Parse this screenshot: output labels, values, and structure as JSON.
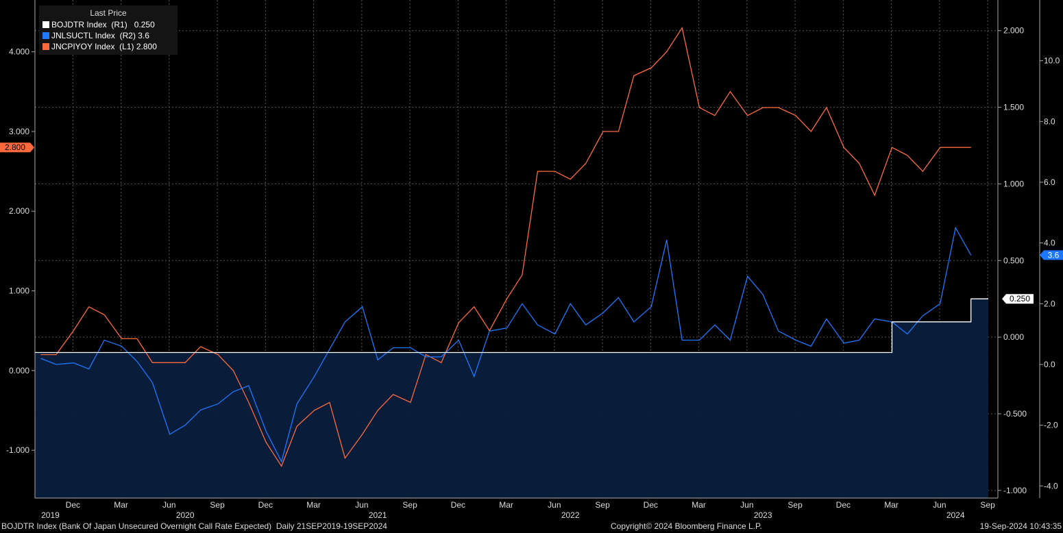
{
  "legend": {
    "title": "Last Price",
    "items": [
      {
        "ticker": "BOJDTR Index",
        "axis": "(R1)",
        "value": "0.250",
        "color": "#ffffff"
      },
      {
        "ticker": "JNLSUCTL Index",
        "axis": "(R2)",
        "value": "3.6",
        "color": "#1e78ff"
      },
      {
        "ticker": "JNCPIYOY Index",
        "axis": "(L1)",
        "value": "2.800",
        "color": "#ff6a3d"
      }
    ]
  },
  "footer": {
    "left": "BOJDTR Index (Bank Of Japan Unsecured Overnight Call Rate Expected)  Daily 21SEP2019-19SEP2024",
    "center": "Copyright© 2024 Bloomberg Finance L.P.",
    "right": "19-Sep-2024 10:43:35"
  },
  "chart_data": {
    "type": "line",
    "x_axis": {
      "month_ticks": [
        {
          "label": "Dec",
          "t": 2019.917
        },
        {
          "label": "Mar",
          "t": 2020.167
        },
        {
          "label": "Jun",
          "t": 2020.417
        },
        {
          "label": "Sep",
          "t": 2020.667
        },
        {
          "label": "Dec",
          "t": 2020.917
        },
        {
          "label": "Mar",
          "t": 2021.167
        },
        {
          "label": "Jun",
          "t": 2021.417
        },
        {
          "label": "Sep",
          "t": 2021.667
        },
        {
          "label": "Dec",
          "t": 2021.917
        },
        {
          "label": "Mar",
          "t": 2022.167
        },
        {
          "label": "Jun",
          "t": 2022.417
        },
        {
          "label": "Sep",
          "t": 2022.667
        },
        {
          "label": "Dec",
          "t": 2022.917
        },
        {
          "label": "Mar",
          "t": 2023.167
        },
        {
          "label": "Jun",
          "t": 2023.417
        },
        {
          "label": "Sep",
          "t": 2023.667
        },
        {
          "label": "Dec",
          "t": 2023.917
        },
        {
          "label": "Mar",
          "t": 2024.167
        },
        {
          "label": "Jun",
          "t": 2024.417
        },
        {
          "label": "Sep",
          "t": 2024.667
        }
      ],
      "year_labels": [
        {
          "label": "2019",
          "t": 2019.8
        },
        {
          "label": "2020",
          "t": 2020.5
        },
        {
          "label": "2021",
          "t": 2021.5
        },
        {
          "label": "2022",
          "t": 2022.5
        },
        {
          "label": "2023",
          "t": 2023.5
        },
        {
          "label": "2024",
          "t": 2024.5
        }
      ],
      "range": [
        2019.72,
        2024.72
      ]
    },
    "left_axis": {
      "series": "L1",
      "range": [
        -1.6,
        4.65
      ],
      "ticks": [
        -1,
        0,
        1,
        2,
        3,
        4
      ],
      "format": 3
    },
    "right_axis_1": {
      "series": "R1",
      "range": [
        -1.05,
        2.2
      ],
      "ticks": [
        -1,
        -0.5,
        0,
        0.5,
        1,
        1.5,
        2
      ],
      "format": 3
    },
    "right_axis_2": {
      "series": "R2",
      "range": [
        -4.4,
        12
      ],
      "ticks": [
        -4,
        -2,
        0,
        2,
        4,
        6,
        8,
        10
      ],
      "format": 1
    },
    "series": [
      {
        "name": "JNCPIYOY Index",
        "axis": "L1",
        "color": "#ff6a3d",
        "points": [
          [
            2019.75,
            0.2
          ],
          [
            2019.83,
            0.2
          ],
          [
            2019.92,
            0.5
          ],
          [
            2020.0,
            0.8
          ],
          [
            2020.08,
            0.7
          ],
          [
            2020.17,
            0.4
          ],
          [
            2020.25,
            0.4
          ],
          [
            2020.33,
            0.1
          ],
          [
            2020.42,
            0.1
          ],
          [
            2020.5,
            0.1
          ],
          [
            2020.58,
            0.3
          ],
          [
            2020.67,
            0.2
          ],
          [
            2020.75,
            0.0
          ],
          [
            2020.83,
            -0.4
          ],
          [
            2020.92,
            -0.9
          ],
          [
            2021.0,
            -1.2
          ],
          [
            2021.08,
            -0.7
          ],
          [
            2021.17,
            -0.5
          ],
          [
            2021.25,
            -0.4
          ],
          [
            2021.33,
            -1.1
          ],
          [
            2021.42,
            -0.8
          ],
          [
            2021.5,
            -0.5
          ],
          [
            2021.58,
            -0.3
          ],
          [
            2021.67,
            -0.4
          ],
          [
            2021.75,
            0.2
          ],
          [
            2021.83,
            0.1
          ],
          [
            2021.92,
            0.6
          ],
          [
            2022.0,
            0.8
          ],
          [
            2022.08,
            0.5
          ],
          [
            2022.17,
            0.9
          ],
          [
            2022.25,
            1.2
          ],
          [
            2022.33,
            2.5
          ],
          [
            2022.42,
            2.5
          ],
          [
            2022.5,
            2.4
          ],
          [
            2022.58,
            2.6
          ],
          [
            2022.67,
            3.0
          ],
          [
            2022.75,
            3.0
          ],
          [
            2022.83,
            3.7
          ],
          [
            2022.92,
            3.8
          ],
          [
            2023.0,
            4.0
          ],
          [
            2023.08,
            4.3
          ],
          [
            2023.17,
            3.3
          ],
          [
            2023.25,
            3.2
          ],
          [
            2023.33,
            3.5
          ],
          [
            2023.42,
            3.2
          ],
          [
            2023.5,
            3.3
          ],
          [
            2023.58,
            3.3
          ],
          [
            2023.67,
            3.2
          ],
          [
            2023.75,
            3.0
          ],
          [
            2023.83,
            3.3
          ],
          [
            2023.92,
            2.8
          ],
          [
            2024.0,
            2.6
          ],
          [
            2024.08,
            2.2
          ],
          [
            2024.17,
            2.8
          ],
          [
            2024.25,
            2.7
          ],
          [
            2024.33,
            2.5
          ],
          [
            2024.42,
            2.8
          ],
          [
            2024.5,
            2.8
          ],
          [
            2024.58,
            2.8
          ]
        ]
      },
      {
        "name": "JNLSUCTL Index",
        "axis": "R2",
        "color": "#1e78ff",
        "points": [
          [
            2019.75,
            0.2
          ],
          [
            2019.83,
            0.0
          ],
          [
            2019.92,
            0.05
          ],
          [
            2020.0,
            -0.15
          ],
          [
            2020.08,
            0.8
          ],
          [
            2020.17,
            0.6
          ],
          [
            2020.25,
            0.1
          ],
          [
            2020.33,
            -0.6
          ],
          [
            2020.42,
            -2.3
          ],
          [
            2020.5,
            -2.0
          ],
          [
            2020.58,
            -1.5
          ],
          [
            2020.67,
            -1.3
          ],
          [
            2020.75,
            -0.9
          ],
          [
            2020.83,
            -0.7
          ],
          [
            2020.92,
            -2.2
          ],
          [
            2021.0,
            -3.2
          ],
          [
            2021.08,
            -1.3
          ],
          [
            2021.17,
            -0.4
          ],
          [
            2021.25,
            0.5
          ],
          [
            2021.33,
            1.4
          ],
          [
            2021.42,
            1.9
          ],
          [
            2021.5,
            0.15
          ],
          [
            2021.58,
            0.55
          ],
          [
            2021.67,
            0.55
          ],
          [
            2021.75,
            0.25
          ],
          [
            2021.83,
            0.25
          ],
          [
            2021.92,
            0.8
          ],
          [
            2022.0,
            -0.4
          ],
          [
            2022.08,
            1.1
          ],
          [
            2022.17,
            1.2
          ],
          [
            2022.25,
            2.0
          ],
          [
            2022.33,
            1.3
          ],
          [
            2022.42,
            1.0
          ],
          [
            2022.5,
            2.0
          ],
          [
            2022.58,
            1.3
          ],
          [
            2022.67,
            1.7
          ],
          [
            2022.75,
            2.2
          ],
          [
            2022.83,
            1.4
          ],
          [
            2022.92,
            1.9
          ],
          [
            2023.0,
            4.1
          ],
          [
            2023.08,
            0.8
          ],
          [
            2023.17,
            0.8
          ],
          [
            2023.25,
            1.3
          ],
          [
            2023.33,
            0.8
          ],
          [
            2023.42,
            2.9
          ],
          [
            2023.5,
            2.3
          ],
          [
            2023.58,
            1.1
          ],
          [
            2023.67,
            0.8
          ],
          [
            2023.75,
            0.6
          ],
          [
            2023.83,
            1.5
          ],
          [
            2023.92,
            0.7
          ],
          [
            2024.0,
            0.8
          ],
          [
            2024.08,
            1.5
          ],
          [
            2024.17,
            1.4
          ],
          [
            2024.25,
            1.0
          ],
          [
            2024.33,
            1.6
          ],
          [
            2024.42,
            2.0
          ],
          [
            2024.5,
            4.5
          ],
          [
            2024.58,
            3.6
          ]
        ]
      },
      {
        "name": "BOJDTR Index",
        "axis": "R1",
        "color": "#ffffff",
        "style": "step-area",
        "points": [
          [
            2019.72,
            -0.1
          ],
          [
            2024.17,
            -0.1
          ],
          [
            2024.17,
            0.1
          ],
          [
            2024.58,
            0.1
          ],
          [
            2024.58,
            0.25
          ],
          [
            2024.67,
            0.25
          ]
        ]
      }
    ]
  }
}
